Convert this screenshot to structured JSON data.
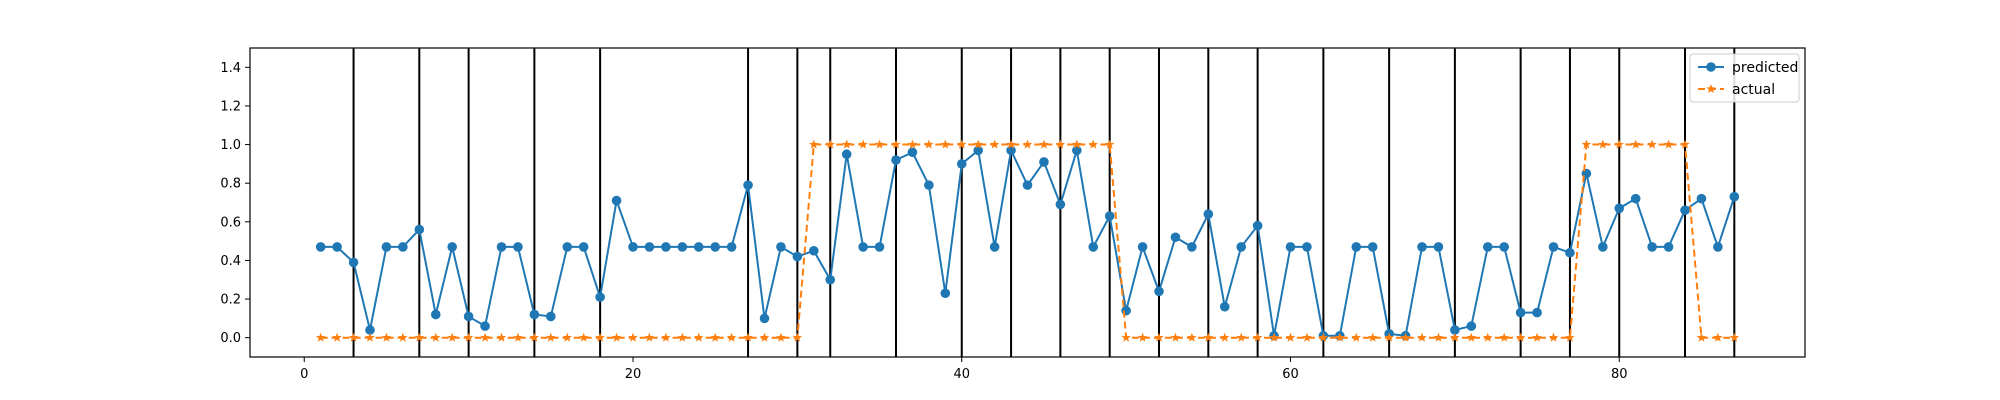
{
  "chart_data": {
    "type": "line",
    "title": "",
    "xlabel": "",
    "ylabel": "",
    "xlim": [
      -3.3,
      91.3
    ],
    "ylim": [
      -0.1,
      1.5
    ],
    "xticks": [
      0,
      20,
      40,
      60,
      80
    ],
    "yticks": [
      0.0,
      0.2,
      0.4,
      0.6,
      0.8,
      1.0,
      1.2,
      1.4
    ],
    "ytick_labels": [
      "0.0",
      "0.2",
      "0.4",
      "0.6",
      "0.8",
      "1.0",
      "1.2",
      "1.4"
    ],
    "xtick_labels": [
      "0",
      "20",
      "40",
      "60",
      "80"
    ],
    "grid": false,
    "legend": "top-right",
    "vlines": [
      3,
      7,
      10,
      14,
      18,
      27,
      30,
      32,
      36,
      40,
      43,
      46,
      49,
      52,
      55,
      58,
      62,
      66,
      70,
      74,
      77,
      80,
      84,
      87
    ],
    "x": [
      1,
      2,
      3,
      4,
      5,
      6,
      7,
      8,
      9,
      10,
      11,
      12,
      13,
      14,
      15,
      16,
      17,
      18,
      19,
      20,
      21,
      22,
      23,
      24,
      25,
      26,
      27,
      28,
      29,
      30,
      31,
      32,
      33,
      34,
      35,
      36,
      37,
      38,
      39,
      40,
      41,
      42,
      43,
      44,
      45,
      46,
      47,
      48,
      49,
      50,
      51,
      52,
      53,
      54,
      55,
      56,
      57,
      58,
      59,
      60,
      61,
      62,
      63,
      64,
      65,
      66,
      67,
      68,
      69,
      70,
      71,
      72,
      73,
      74,
      75,
      76,
      77,
      78,
      79,
      80,
      81,
      82,
      83,
      84,
      85,
      86,
      87
    ],
    "series": [
      {
        "name": "predicted",
        "color": "#1f77b4",
        "marker": "circle",
        "linestyle": "solid",
        "values": [
          0.47,
          0.47,
          0.39,
          0.04,
          0.47,
          0.47,
          0.56,
          0.12,
          0.47,
          0.11,
          0.06,
          0.47,
          0.47,
          0.12,
          0.11,
          0.47,
          0.47,
          0.21,
          0.71,
          0.47,
          0.47,
          0.47,
          0.47,
          0.47,
          0.47,
          0.47,
          0.79,
          0.1,
          0.47,
          0.42,
          0.45,
          0.3,
          0.95,
          0.47,
          0.47,
          0.92,
          0.96,
          0.79,
          0.23,
          0.9,
          0.97,
          0.47,
          0.97,
          0.79,
          0.91,
          0.69,
          0.97,
          0.47,
          0.63,
          0.14,
          0.47,
          0.24,
          0.52,
          0.47,
          0.64,
          0.16,
          0.47,
          0.58,
          0.01,
          0.47,
          0.47,
          0.01,
          0.01,
          0.47,
          0.47,
          0.02,
          0.01,
          0.47,
          0.47,
          0.04,
          0.06,
          0.47,
          0.47,
          0.13,
          0.13,
          0.47,
          0.44,
          0.85,
          0.47,
          0.67,
          0.72,
          0.47,
          0.47,
          0.66,
          0.72,
          0.47,
          0.73
        ]
      },
      {
        "name": "actual",
        "color": "#ff7f0e",
        "marker": "star",
        "linestyle": "dashed",
        "values": [
          0,
          0,
          0,
          0,
          0,
          0,
          0,
          0,
          0,
          0,
          0,
          0,
          0,
          0,
          0,
          0,
          0,
          0,
          0,
          0,
          0,
          0,
          0,
          0,
          0,
          0,
          0,
          0,
          0,
          0,
          1,
          1,
          1,
          1,
          1,
          1,
          1,
          1,
          1,
          1,
          1,
          1,
          1,
          1,
          1,
          1,
          1,
          1,
          1,
          0,
          0,
          0,
          0,
          0,
          0,
          0,
          0,
          0,
          0,
          0,
          0,
          0,
          0,
          0,
          0,
          0,
          0,
          0,
          0,
          0,
          0,
          0,
          0,
          0,
          0,
          0,
          0,
          1,
          1,
          1,
          1,
          1,
          1,
          1,
          0,
          0,
          0
        ]
      }
    ]
  }
}
